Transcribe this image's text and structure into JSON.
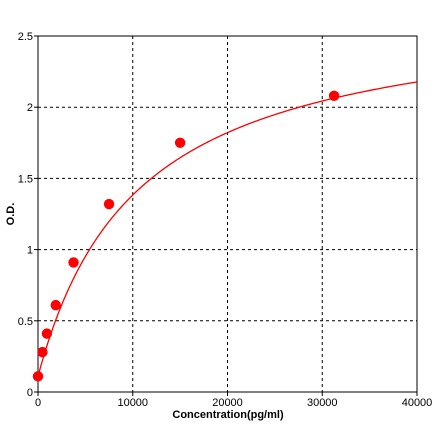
{
  "chart_data": {
    "type": "scatter",
    "xlabel": "Concentration(pg/ml)",
    "ylabel": "O.D.",
    "xlim": [
      0,
      40000
    ],
    "ylim": [
      0,
      2.5
    ],
    "x_ticks": [
      0,
      10000,
      20000,
      30000,
      40000
    ],
    "x_tick_labels": [
      "0",
      "10000",
      "20000",
      "30000",
      "40000"
    ],
    "y_ticks": [
      0,
      0.5,
      1,
      1.5,
      2,
      2.5
    ],
    "y_tick_labels": [
      "0",
      "0.5",
      "1",
      "1.5",
      "2",
      "2.5"
    ],
    "grid": true,
    "series": [
      {
        "x": [
          0,
          468.75,
          937.5,
          1875,
          3750,
          7500,
          15000,
          31250
        ],
        "y": [
          0.11,
          0.28,
          0.41,
          0.61,
          0.91,
          1.32,
          1.75,
          2.08
        ],
        "color": "#ff0000"
      }
    ],
    "fit_curve": {
      "model": "saturation",
      "y0": 0.11,
      "ymax": 2.72,
      "k": 10500,
      "color": "#ff0000"
    }
  }
}
